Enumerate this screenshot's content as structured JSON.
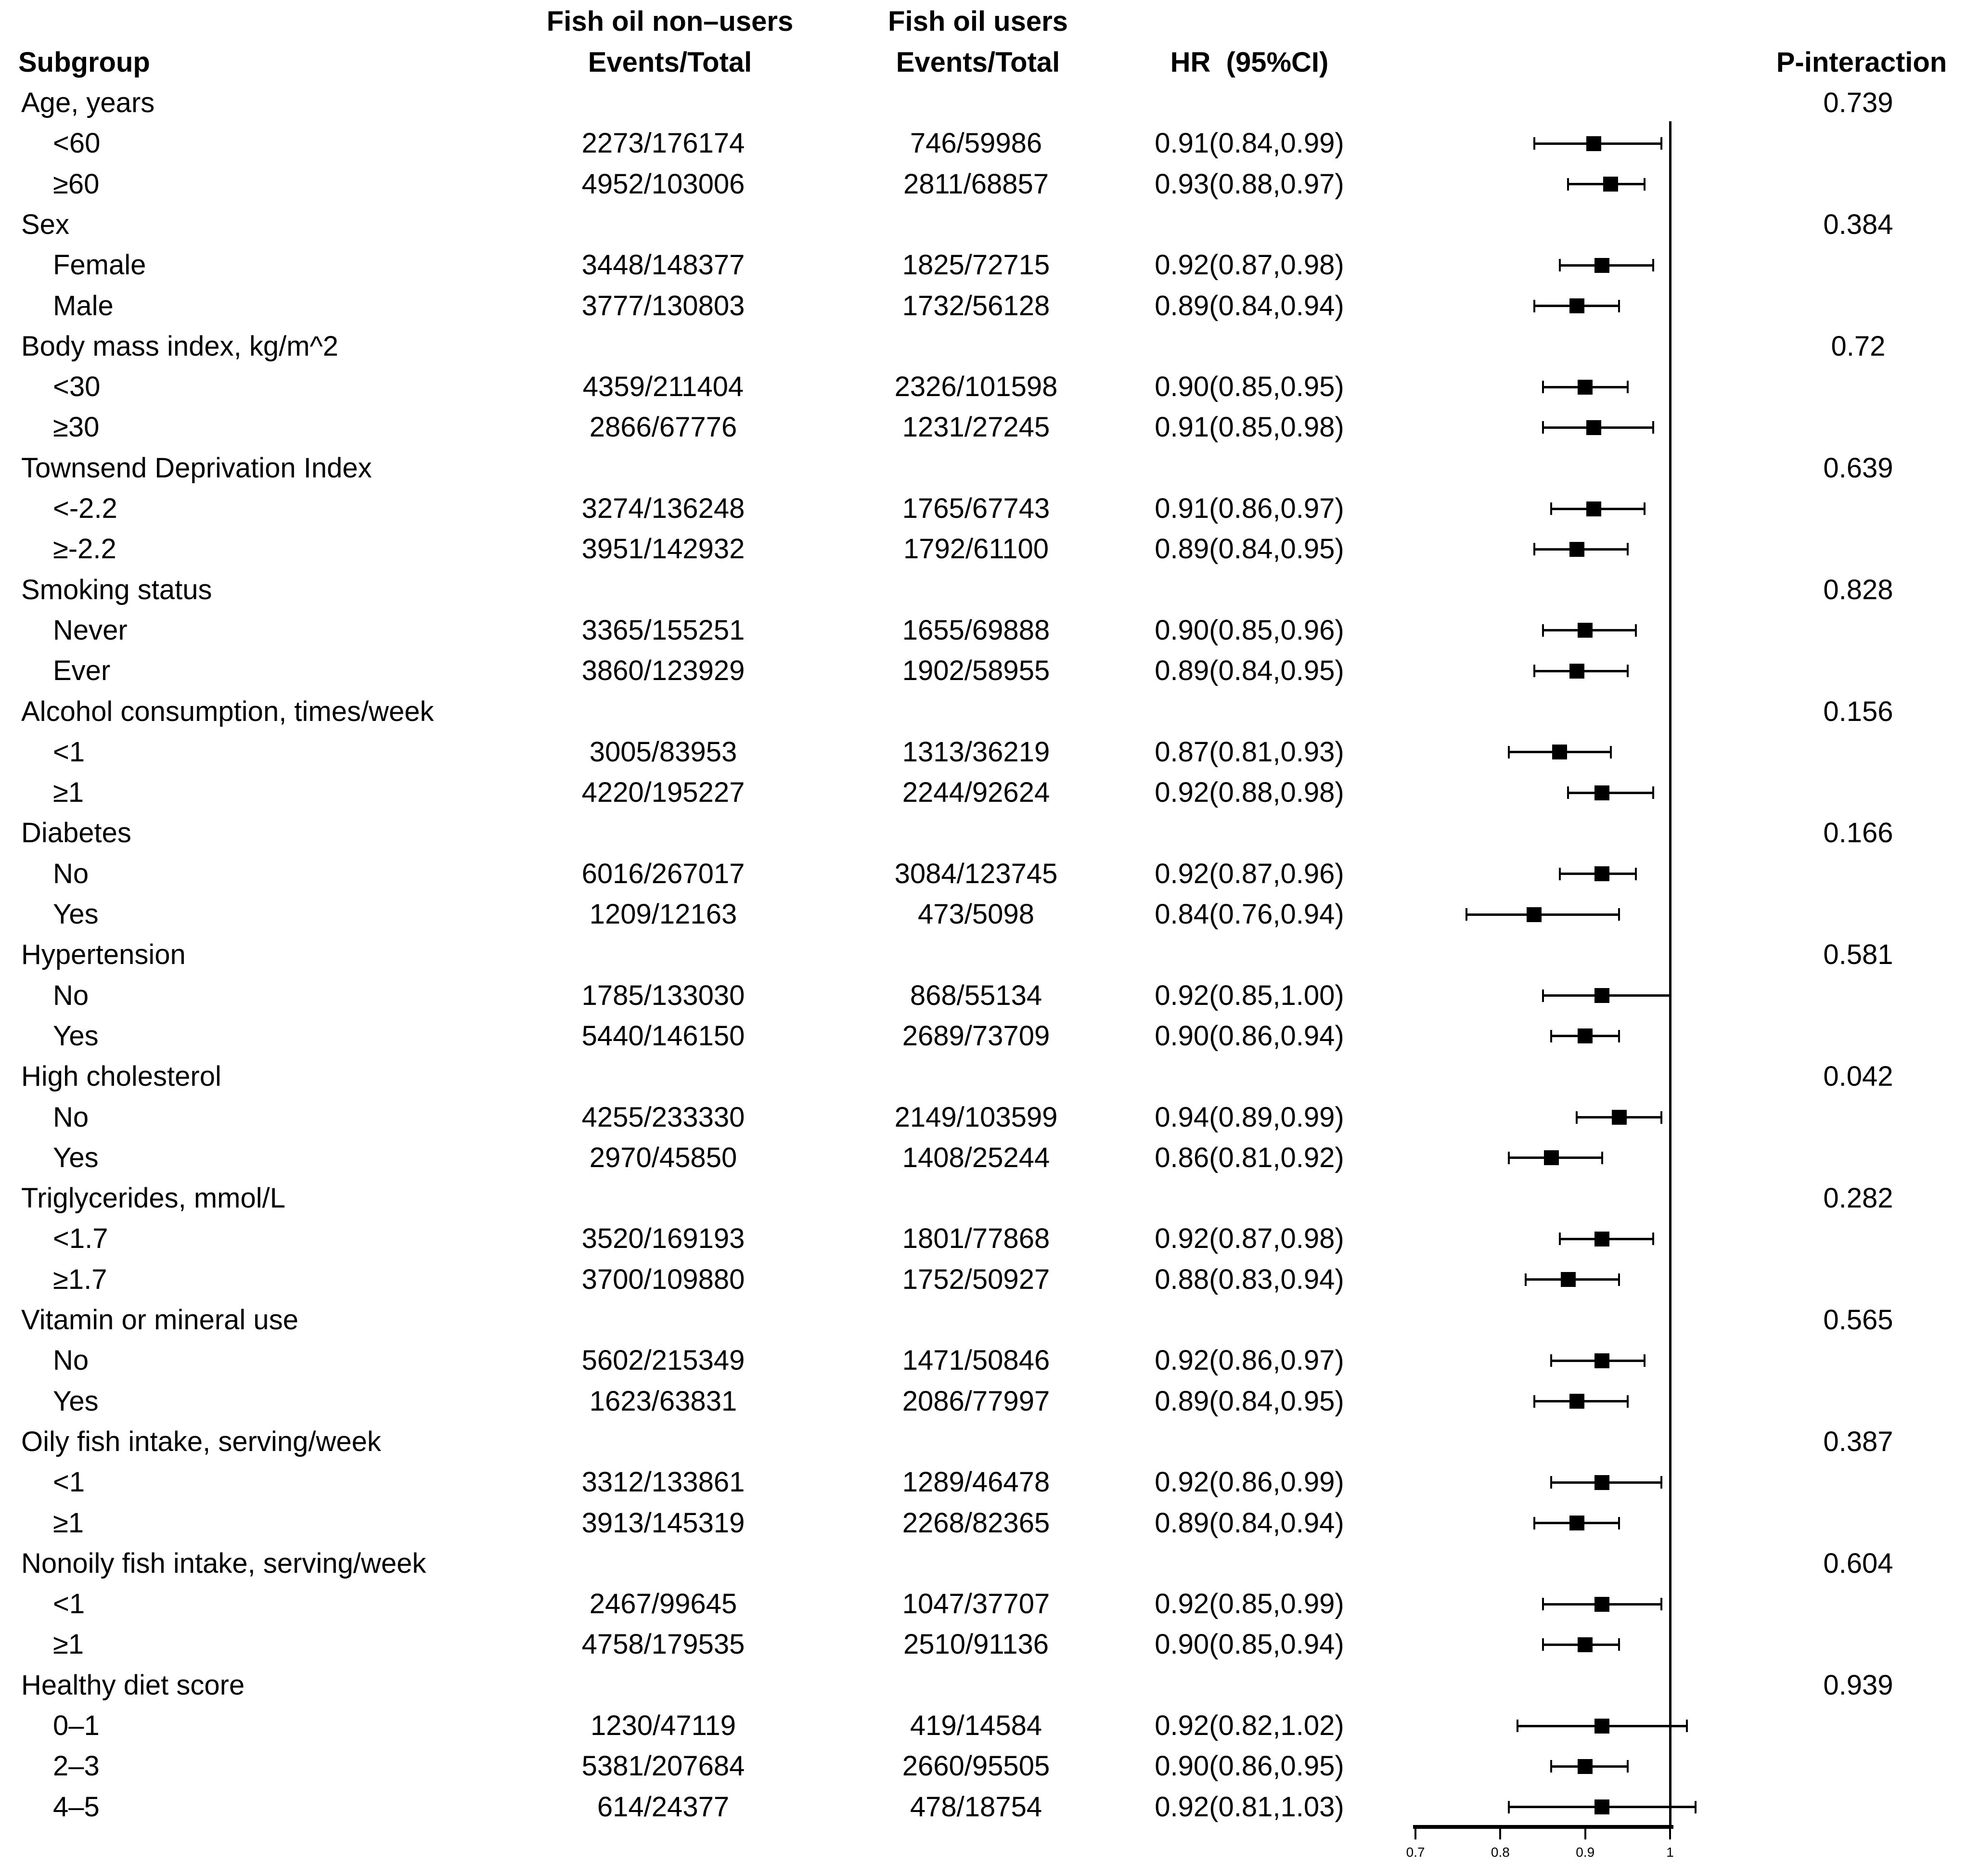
{
  "header": {
    "group1": "Fish oil non–users",
    "group2": "Fish oil users",
    "subgroup": "Subgroup",
    "events_total_1": "Events/Total",
    "events_total_2": "Events/Total",
    "hr_ci": "HR  (95%CI)",
    "p_interaction": "P-interaction"
  },
  "colors": {
    "text": "#000000",
    "background": "#ffffff",
    "marker": "#000000"
  },
  "chart_data": {
    "type": "forest",
    "x_axis": {
      "range_min": 0.7,
      "range_max": 1.0,
      "ref_line": 1,
      "ticks": [
        {
          "v": 0.7,
          "label": "0.7"
        },
        {
          "v": 0.8,
          "label": "0.8"
        },
        {
          "v": 0.9,
          "label": "0.9"
        },
        {
          "v": 1.0,
          "label": "1"
        }
      ]
    },
    "rows": [
      {
        "kind": "group",
        "label": "Age, years",
        "p": "0.739"
      },
      {
        "kind": "item",
        "label": "<60",
        "nonusers": "2273/176174",
        "users": "746/59986",
        "hr_text": "0.91(0.84,0.99)",
        "hr": 0.91,
        "lo": 0.84,
        "hi": 0.99
      },
      {
        "kind": "item",
        "label": "≥60",
        "nonusers": "4952/103006",
        "users": "2811/68857",
        "hr_text": "0.93(0.88,0.97)",
        "hr": 0.93,
        "lo": 0.88,
        "hi": 0.97
      },
      {
        "kind": "group",
        "label": "Sex",
        "p": "0.384"
      },
      {
        "kind": "item",
        "label": "Female",
        "nonusers": "3448/148377",
        "users": "1825/72715",
        "hr_text": "0.92(0.87,0.98)",
        "hr": 0.92,
        "lo": 0.87,
        "hi": 0.98
      },
      {
        "kind": "item",
        "label": "Male",
        "nonusers": "3777/130803",
        "users": "1732/56128",
        "hr_text": "0.89(0.84,0.94)",
        "hr": 0.89,
        "lo": 0.84,
        "hi": 0.94
      },
      {
        "kind": "group",
        "label": "Body mass index, kg/m^2",
        "p": "0.72"
      },
      {
        "kind": "item",
        "label": "<30",
        "nonusers": "4359/211404",
        "users": "2326/101598",
        "hr_text": "0.90(0.85,0.95)",
        "hr": 0.9,
        "lo": 0.85,
        "hi": 0.95
      },
      {
        "kind": "item",
        "label": "≥30",
        "nonusers": "2866/67776",
        "users": "1231/27245",
        "hr_text": "0.91(0.85,0.98)",
        "hr": 0.91,
        "lo": 0.85,
        "hi": 0.98
      },
      {
        "kind": "group",
        "label": "Townsend Deprivation Index",
        "p": "0.639"
      },
      {
        "kind": "item",
        "label": "<-2.2",
        "nonusers": "3274/136248",
        "users": "1765/67743",
        "hr_text": "0.91(0.86,0.97)",
        "hr": 0.91,
        "lo": 0.86,
        "hi": 0.97
      },
      {
        "kind": "item",
        "label": "≥-2.2",
        "nonusers": "3951/142932",
        "users": "1792/61100",
        "hr_text": "0.89(0.84,0.95)",
        "hr": 0.89,
        "lo": 0.84,
        "hi": 0.95
      },
      {
        "kind": "group",
        "label": "Smoking status",
        "p": "0.828"
      },
      {
        "kind": "item",
        "label": "Never",
        "nonusers": "3365/155251",
        "users": "1655/69888",
        "hr_text": "0.90(0.85,0.96)",
        "hr": 0.9,
        "lo": 0.85,
        "hi": 0.96
      },
      {
        "kind": "item",
        "label": "Ever",
        "nonusers": "3860/123929",
        "users": "1902/58955",
        "hr_text": "0.89(0.84,0.95)",
        "hr": 0.89,
        "lo": 0.84,
        "hi": 0.95
      },
      {
        "kind": "group",
        "label": "Alcohol consumption, times/week",
        "p": "0.156"
      },
      {
        "kind": "item",
        "label": "<1",
        "nonusers": "3005/83953",
        "users": "1313/36219",
        "hr_text": "0.87(0.81,0.93)",
        "hr": 0.87,
        "lo": 0.81,
        "hi": 0.93
      },
      {
        "kind": "item",
        "label": "≥1",
        "nonusers": "4220/195227",
        "users": "2244/92624",
        "hr_text": "0.92(0.88,0.98)",
        "hr": 0.92,
        "lo": 0.88,
        "hi": 0.98
      },
      {
        "kind": "group",
        "label": "Diabetes",
        "p": "0.166"
      },
      {
        "kind": "item",
        "label": "No",
        "nonusers": "6016/267017",
        "users": "3084/123745",
        "hr_text": "0.92(0.87,0.96)",
        "hr": 0.92,
        "lo": 0.87,
        "hi": 0.96
      },
      {
        "kind": "item",
        "label": "Yes",
        "nonusers": "1209/12163",
        "users": "473/5098",
        "hr_text": "0.84(0.76,0.94)",
        "hr": 0.84,
        "lo": 0.76,
        "hi": 0.94
      },
      {
        "kind": "group",
        "label": "Hypertension",
        "p": "0.581"
      },
      {
        "kind": "item",
        "label": "No",
        "nonusers": "1785/133030",
        "users": "868/55134",
        "hr_text": "0.92(0.85,1.00)",
        "hr": 0.92,
        "lo": 0.85,
        "hi": 1.0
      },
      {
        "kind": "item",
        "label": "Yes",
        "nonusers": "5440/146150",
        "users": "2689/73709",
        "hr_text": "0.90(0.86,0.94)",
        "hr": 0.9,
        "lo": 0.86,
        "hi": 0.94
      },
      {
        "kind": "group",
        "label": "High cholesterol",
        "p": "0.042"
      },
      {
        "kind": "item",
        "label": "No",
        "nonusers": "4255/233330",
        "users": "2149/103599",
        "hr_text": "0.94(0.89,0.99)",
        "hr": 0.94,
        "lo": 0.89,
        "hi": 0.99
      },
      {
        "kind": "item",
        "label": "Yes",
        "nonusers": "2970/45850",
        "users": "1408/25244",
        "hr_text": "0.86(0.81,0.92)",
        "hr": 0.86,
        "lo": 0.81,
        "hi": 0.92
      },
      {
        "kind": "group",
        "label": "Triglycerides, mmol/L",
        "p": "0.282"
      },
      {
        "kind": "item",
        "label": "<1.7",
        "nonusers": "3520/169193",
        "users": "1801/77868",
        "hr_text": "0.92(0.87,0.98)",
        "hr": 0.92,
        "lo": 0.87,
        "hi": 0.98
      },
      {
        "kind": "item",
        "label": "≥1.7",
        "nonusers": "3700/109880",
        "users": "1752/50927",
        "hr_text": "0.88(0.83,0.94)",
        "hr": 0.88,
        "lo": 0.83,
        "hi": 0.94
      },
      {
        "kind": "group",
        "label": "Vitamin or mineral use",
        "p": "0.565"
      },
      {
        "kind": "item",
        "label": "No",
        "nonusers": "5602/215349",
        "users": "1471/50846",
        "hr_text": "0.92(0.86,0.97)",
        "hr": 0.92,
        "lo": 0.86,
        "hi": 0.97
      },
      {
        "kind": "item",
        "label": "Yes",
        "nonusers": "1623/63831",
        "users": "2086/77997",
        "hr_text": "0.89(0.84,0.95)",
        "hr": 0.89,
        "lo": 0.84,
        "hi": 0.95
      },
      {
        "kind": "group",
        "label": "Oily fish intake, serving/week",
        "p": "0.387"
      },
      {
        "kind": "item",
        "label": "<1",
        "nonusers": "3312/133861",
        "users": "1289/46478",
        "hr_text": "0.92(0.86,0.99)",
        "hr": 0.92,
        "lo": 0.86,
        "hi": 0.99
      },
      {
        "kind": "item",
        "label": "≥1",
        "nonusers": "3913/145319",
        "users": "2268/82365",
        "hr_text": "0.89(0.84,0.94)",
        "hr": 0.89,
        "lo": 0.84,
        "hi": 0.94
      },
      {
        "kind": "group",
        "label": "Nonoily fish intake, serving/week",
        "p": "0.604"
      },
      {
        "kind": "item",
        "label": "<1",
        "nonusers": "2467/99645",
        "users": "1047/37707",
        "hr_text": "0.92(0.85,0.99)",
        "hr": 0.92,
        "lo": 0.85,
        "hi": 0.99
      },
      {
        "kind": "item",
        "label": "≥1",
        "nonusers": "4758/179535",
        "users": "2510/91136",
        "hr_text": "0.90(0.85,0.94)",
        "hr": 0.9,
        "lo": 0.85,
        "hi": 0.94
      },
      {
        "kind": "group",
        "label": "Healthy diet score",
        "p": "0.939"
      },
      {
        "kind": "item",
        "label": "0–1",
        "nonusers": "1230/47119",
        "users": "419/14584",
        "hr_text": "0.92(0.82,1.02)",
        "hr": 0.92,
        "lo": 0.82,
        "hi": 1.02
      },
      {
        "kind": "item",
        "label": "2–3",
        "nonusers": "5381/207684",
        "users": "2660/95505",
        "hr_text": "0.90(0.86,0.95)",
        "hr": 0.9,
        "lo": 0.86,
        "hi": 0.95
      },
      {
        "kind": "item",
        "label": "4–5",
        "nonusers": "614/24377",
        "users": "478/18754",
        "hr_text": "0.92(0.81,1.03)",
        "hr": 0.92,
        "lo": 0.81,
        "hi": 1.03
      }
    ]
  }
}
